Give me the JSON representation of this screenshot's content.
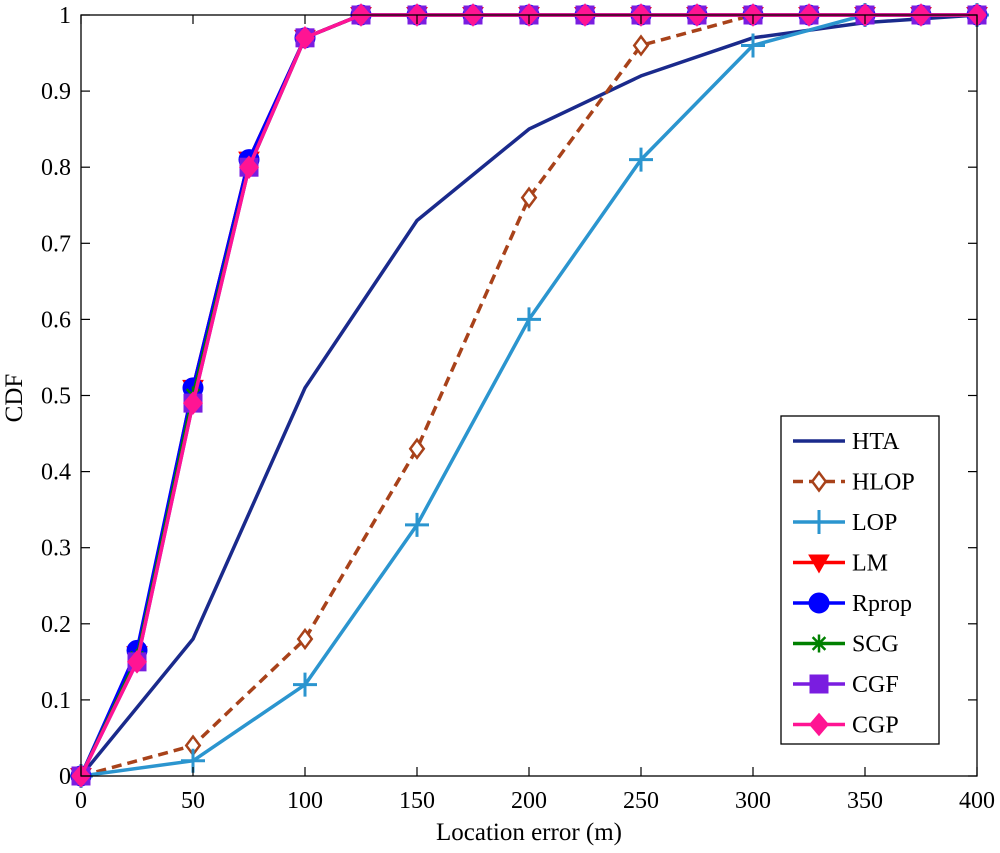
{
  "chart_data": {
    "type": "line",
    "title": "",
    "xlabel": "Location error (m)",
    "ylabel": "CDF",
    "xlim": [
      0,
      400
    ],
    "ylim": [
      0,
      1
    ],
    "xticks": [
      0,
      50,
      100,
      150,
      200,
      250,
      300,
      350,
      400
    ],
    "yticks": [
      0,
      0.1,
      0.2,
      0.3,
      0.4,
      0.5,
      0.6,
      0.7,
      0.8,
      0.9,
      1
    ],
    "xtick_labels": [
      "0",
      "50",
      "100",
      "150",
      "200",
      "250",
      "300",
      "350",
      "400"
    ],
    "ytick_labels": [
      "0",
      "0.1",
      "0.2",
      "0.3",
      "0.4",
      "0.5",
      "0.6",
      "0.7",
      "0.8",
      "0.9",
      "1"
    ],
    "grid": false,
    "legend_position": "bottom-right",
    "series": [
      {
        "name": "HTA",
        "color": "#1a2a8c",
        "dash": "solid",
        "marker": "none",
        "x": [
          0,
          50,
          100,
          150,
          200,
          250,
          300,
          350,
          400
        ],
        "y": [
          0,
          0.18,
          0.51,
          0.73,
          0.85,
          0.92,
          0.97,
          0.99,
          1.0
        ]
      },
      {
        "name": "HLOP",
        "color": "#a8421a",
        "dash": "dashed",
        "marker": "diamond-open",
        "x": [
          0,
          50,
          100,
          150,
          200,
          250,
          300,
          350,
          400
        ],
        "y": [
          0,
          0.04,
          0.18,
          0.43,
          0.76,
          0.96,
          1.0,
          1.0,
          1.0
        ]
      },
      {
        "name": "LOP",
        "color": "#2b95cf",
        "dash": "solid",
        "marker": "plus",
        "x": [
          0,
          50,
          100,
          150,
          200,
          250,
          300,
          350,
          400
        ],
        "y": [
          0,
          0.02,
          0.12,
          0.33,
          0.6,
          0.81,
          0.96,
          1.0,
          1.0
        ]
      },
      {
        "name": "LM",
        "color": "#ff0000",
        "dash": "solid",
        "marker": "triangle-down",
        "x": [
          0,
          25,
          50,
          75,
          100,
          125,
          150,
          175,
          200,
          225,
          250,
          275,
          300,
          325,
          350,
          375,
          400
        ],
        "y": [
          0,
          0.16,
          0.51,
          0.81,
          0.97,
          1.0,
          1.0,
          1.0,
          1.0,
          1.0,
          1.0,
          1.0,
          1.0,
          1.0,
          1.0,
          1.0,
          1.0
        ]
      },
      {
        "name": "Rprop",
        "color": "#0000ff",
        "dash": "solid",
        "marker": "circle",
        "x": [
          0,
          25,
          50,
          75,
          100,
          125,
          150,
          175,
          200,
          225,
          250,
          275,
          300,
          325,
          350,
          375,
          400
        ],
        "y": [
          0,
          0.165,
          0.51,
          0.81,
          0.97,
          1.0,
          1.0,
          1.0,
          1.0,
          1.0,
          1.0,
          1.0,
          1.0,
          1.0,
          1.0,
          1.0,
          1.0
        ]
      },
      {
        "name": "SCG",
        "color": "#008000",
        "dash": "solid",
        "marker": "asterisk",
        "x": [
          0,
          25,
          50,
          75,
          100,
          125,
          150,
          175,
          200,
          225,
          250,
          275,
          300,
          325,
          350,
          375,
          400
        ],
        "y": [
          0,
          0.155,
          0.5,
          0.8,
          0.97,
          1.0,
          1.0,
          1.0,
          1.0,
          1.0,
          1.0,
          1.0,
          1.0,
          1.0,
          1.0,
          1.0,
          1.0
        ]
      },
      {
        "name": "CGF",
        "color": "#7a1de0",
        "dash": "solid",
        "marker": "square",
        "x": [
          0,
          25,
          50,
          75,
          100,
          125,
          150,
          175,
          200,
          225,
          250,
          275,
          300,
          325,
          350,
          375,
          400
        ],
        "y": [
          0,
          0.15,
          0.49,
          0.8,
          0.97,
          1.0,
          1.0,
          1.0,
          1.0,
          1.0,
          1.0,
          1.0,
          1.0,
          1.0,
          1.0,
          1.0,
          1.0
        ]
      },
      {
        "name": "CGP",
        "color": "#ff1493",
        "dash": "solid",
        "marker": "diamond",
        "x": [
          0,
          25,
          50,
          75,
          100,
          125,
          150,
          175,
          200,
          225,
          250,
          275,
          300,
          325,
          350,
          375,
          400
        ],
        "y": [
          0,
          0.15,
          0.49,
          0.8,
          0.97,
          1.0,
          1.0,
          1.0,
          1.0,
          1.0,
          1.0,
          1.0,
          1.0,
          1.0,
          1.0,
          1.0,
          1.0
        ]
      }
    ]
  }
}
